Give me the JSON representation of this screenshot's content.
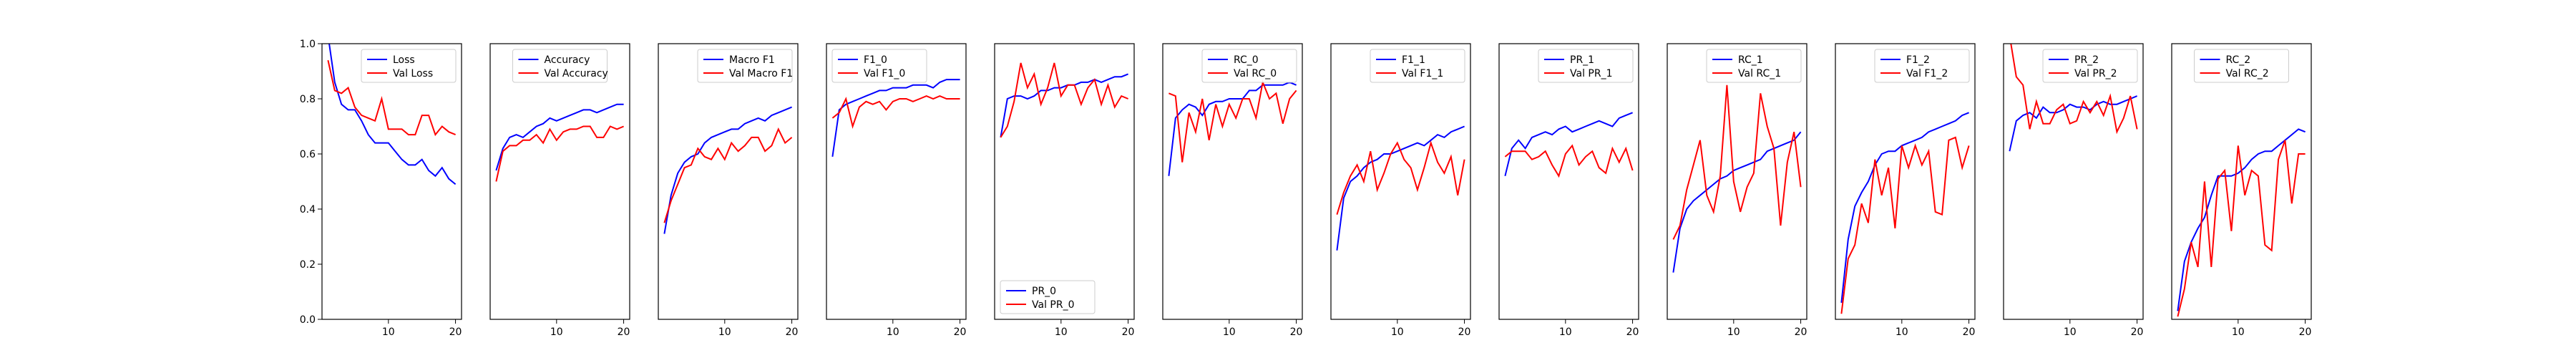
{
  "colors": {
    "train": "#0000ff",
    "val": "#ff0000",
    "axes": "#000000",
    "legend_border": "#cccccc"
  },
  "chart_data": [
    {
      "type": "line",
      "x": [
        1,
        2,
        3,
        4,
        5,
        6,
        7,
        8,
        9,
        10,
        11,
        12,
        13,
        14,
        15,
        16,
        17,
        18,
        19,
        20
      ],
      "xticks": [
        10,
        20
      ],
      "xlim": [
        0.1,
        20.9
      ],
      "yticks": [
        "0.0",
        "0.2",
        "0.4",
        "0.6",
        "0.8",
        "1.0"
      ],
      "ylim": [
        0,
        1
      ],
      "legend": "top-right",
      "series": [
        {
          "name": "Loss",
          "color": "blue",
          "values": [
            1.03,
            0.86,
            0.78,
            0.76,
            0.76,
            0.72,
            0.67,
            0.64,
            0.64,
            0.64,
            0.61,
            0.58,
            0.56,
            0.56,
            0.58,
            0.54,
            0.52,
            0.55,
            0.51,
            0.49
          ]
        },
        {
          "name": "Val Loss",
          "color": "red",
          "values": [
            0.94,
            0.83,
            0.82,
            0.84,
            0.77,
            0.74,
            0.73,
            0.72,
            0.8,
            0.69,
            0.69,
            0.69,
            0.67,
            0.67,
            0.74,
            0.74,
            0.67,
            0.7,
            0.68,
            0.67
          ]
        }
      ]
    },
    {
      "type": "line",
      "x": [
        1,
        2,
        3,
        4,
        5,
        6,
        7,
        8,
        9,
        10,
        11,
        12,
        13,
        14,
        15,
        16,
        17,
        18,
        19,
        20
      ],
      "xticks": [
        10,
        20
      ],
      "xlim": [
        0.1,
        20.9
      ],
      "yticks": [],
      "ylim": [
        0,
        1
      ],
      "legend": "top-center",
      "series": [
        {
          "name": "Accuracy",
          "color": "blue",
          "values": [
            0.54,
            0.62,
            0.66,
            0.67,
            0.66,
            0.68,
            0.7,
            0.71,
            0.73,
            0.72,
            0.73,
            0.74,
            0.75,
            0.76,
            0.76,
            0.75,
            0.76,
            0.77,
            0.78,
            0.78
          ]
        },
        {
          "name": "Val Accuracy",
          "color": "red",
          "values": [
            0.5,
            0.61,
            0.63,
            0.63,
            0.65,
            0.65,
            0.67,
            0.64,
            0.69,
            0.65,
            0.68,
            0.69,
            0.69,
            0.7,
            0.7,
            0.66,
            0.66,
            0.7,
            0.69,
            0.7
          ]
        }
      ]
    },
    {
      "type": "line",
      "x": [
        1,
        2,
        3,
        4,
        5,
        6,
        7,
        8,
        9,
        10,
        11,
        12,
        13,
        14,
        15,
        16,
        17,
        18,
        19,
        20
      ],
      "xticks": [
        10,
        20
      ],
      "xlim": [
        0.1,
        20.9
      ],
      "yticks": [],
      "ylim": [
        0,
        1
      ],
      "legend": "top-right",
      "series": [
        {
          "name": "Macro F1",
          "color": "blue",
          "values": [
            0.31,
            0.45,
            0.53,
            0.57,
            0.59,
            0.6,
            0.64,
            0.66,
            0.67,
            0.68,
            0.69,
            0.69,
            0.71,
            0.72,
            0.73,
            0.72,
            0.74,
            0.75,
            0.76,
            0.77
          ]
        },
        {
          "name": "Val Macro F1",
          "color": "red",
          "values": [
            0.35,
            0.43,
            0.49,
            0.55,
            0.56,
            0.62,
            0.59,
            0.58,
            0.62,
            0.58,
            0.64,
            0.61,
            0.63,
            0.66,
            0.66,
            0.61,
            0.63,
            0.69,
            0.64,
            0.66
          ]
        }
      ]
    },
    {
      "type": "line",
      "x": [
        1,
        2,
        3,
        4,
        5,
        6,
        7,
        8,
        9,
        10,
        11,
        12,
        13,
        14,
        15,
        16,
        17,
        18,
        19,
        20
      ],
      "xticks": [
        10,
        20
      ],
      "xlim": [
        0.1,
        20.9
      ],
      "yticks": [],
      "ylim": [
        0,
        1
      ],
      "legend": "top-left",
      "series": [
        {
          "name": "F1_0",
          "color": "blue",
          "values": [
            0.59,
            0.76,
            0.78,
            0.79,
            0.8,
            0.81,
            0.82,
            0.83,
            0.83,
            0.84,
            0.84,
            0.84,
            0.85,
            0.85,
            0.85,
            0.84,
            0.86,
            0.87,
            0.87,
            0.87
          ]
        },
        {
          "name": "Val F1_0",
          "color": "red",
          "values": [
            0.73,
            0.75,
            0.8,
            0.7,
            0.77,
            0.79,
            0.78,
            0.79,
            0.76,
            0.79,
            0.8,
            0.8,
            0.79,
            0.8,
            0.81,
            0.8,
            0.81,
            0.8,
            0.8,
            0.8
          ]
        }
      ]
    },
    {
      "type": "line",
      "x": [
        1,
        2,
        3,
        4,
        5,
        6,
        7,
        8,
        9,
        10,
        11,
        12,
        13,
        14,
        15,
        16,
        17,
        18,
        19,
        20
      ],
      "xticks": [
        10,
        20
      ],
      "xlim": [
        0.1,
        20.9
      ],
      "yticks": [],
      "ylim": [
        0,
        1
      ],
      "legend": "bottom-left",
      "series": [
        {
          "name": "PR_0",
          "color": "blue",
          "values": [
            0.66,
            0.8,
            0.81,
            0.81,
            0.8,
            0.81,
            0.83,
            0.83,
            0.84,
            0.84,
            0.85,
            0.85,
            0.86,
            0.86,
            0.87,
            0.86,
            0.87,
            0.88,
            0.88,
            0.89
          ]
        },
        {
          "name": "Val PR_0",
          "color": "red",
          "values": [
            0.66,
            0.7,
            0.79,
            0.93,
            0.84,
            0.89,
            0.78,
            0.84,
            0.93,
            0.81,
            0.85,
            0.85,
            0.78,
            0.84,
            0.87,
            0.78,
            0.85,
            0.77,
            0.81,
            0.8
          ]
        }
      ]
    },
    {
      "type": "line",
      "x": [
        1,
        2,
        3,
        4,
        5,
        6,
        7,
        8,
        9,
        10,
        11,
        12,
        13,
        14,
        15,
        16,
        17,
        18,
        19,
        20
      ],
      "xticks": [
        10,
        20
      ],
      "xlim": [
        0.1,
        20.9
      ],
      "yticks": [],
      "ylim": [
        0,
        1
      ],
      "legend": "top-right",
      "series": [
        {
          "name": "RC_0",
          "color": "blue",
          "values": [
            0.52,
            0.73,
            0.76,
            0.78,
            0.77,
            0.74,
            0.78,
            0.79,
            0.79,
            0.8,
            0.8,
            0.8,
            0.83,
            0.83,
            0.85,
            0.85,
            0.85,
            0.85,
            0.86,
            0.85
          ]
        },
        {
          "name": "Val RC_0",
          "color": "red",
          "values": [
            0.82,
            0.81,
            0.57,
            0.75,
            0.68,
            0.8,
            0.65,
            0.78,
            0.7,
            0.78,
            0.73,
            0.8,
            0.8,
            0.73,
            0.86,
            0.8,
            0.82,
            0.71,
            0.8,
            0.83
          ]
        }
      ]
    },
    {
      "type": "line",
      "x": [
        1,
        2,
        3,
        4,
        5,
        6,
        7,
        8,
        9,
        10,
        11,
        12,
        13,
        14,
        15,
        16,
        17,
        18,
        19,
        20
      ],
      "xticks": [
        10,
        20
      ],
      "xlim": [
        0.1,
        20.9
      ],
      "yticks": [],
      "ylim": [
        0,
        1
      ],
      "legend": "top-right",
      "series": [
        {
          "name": "F1_1",
          "color": "blue",
          "values": [
            0.25,
            0.44,
            0.5,
            0.52,
            0.55,
            0.57,
            0.58,
            0.6,
            0.6,
            0.61,
            0.62,
            0.63,
            0.64,
            0.63,
            0.65,
            0.67,
            0.66,
            0.68,
            0.69,
            0.7
          ]
        },
        {
          "name": "Val F1_1",
          "color": "red",
          "values": [
            0.38,
            0.46,
            0.52,
            0.56,
            0.5,
            0.61,
            0.47,
            0.53,
            0.6,
            0.64,
            0.58,
            0.55,
            0.47,
            0.55,
            0.64,
            0.57,
            0.53,
            0.59,
            0.45,
            0.58
          ]
        }
      ]
    },
    {
      "type": "line",
      "x": [
        1,
        2,
        3,
        4,
        5,
        6,
        7,
        8,
        9,
        10,
        11,
        12,
        13,
        14,
        15,
        16,
        17,
        18,
        19,
        20
      ],
      "xticks": [
        10,
        20
      ],
      "xlim": [
        0.1,
        20.9
      ],
      "yticks": [],
      "ylim": [
        0,
        1
      ],
      "legend": "top-right",
      "series": [
        {
          "name": "PR_1",
          "color": "blue",
          "values": [
            0.52,
            0.62,
            0.65,
            0.62,
            0.66,
            0.67,
            0.68,
            0.67,
            0.69,
            0.7,
            0.68,
            0.69,
            0.7,
            0.71,
            0.72,
            0.71,
            0.7,
            0.73,
            0.74,
            0.75
          ]
        },
        {
          "name": "Val PR_1",
          "color": "red",
          "values": [
            0.59,
            0.61,
            0.61,
            0.61,
            0.58,
            0.59,
            0.61,
            0.56,
            0.52,
            0.6,
            0.63,
            0.56,
            0.59,
            0.61,
            0.55,
            0.53,
            0.62,
            0.57,
            0.62,
            0.54
          ]
        }
      ]
    },
    {
      "type": "line",
      "x": [
        1,
        2,
        3,
        4,
        5,
        6,
        7,
        8,
        9,
        10,
        11,
        12,
        13,
        14,
        15,
        16,
        17,
        18,
        19,
        20
      ],
      "xticks": [
        10,
        20
      ],
      "xlim": [
        0.1,
        20.9
      ],
      "yticks": [],
      "ylim": [
        0,
        1
      ],
      "legend": "top-right",
      "series": [
        {
          "name": "RC_1",
          "color": "blue",
          "values": [
            0.17,
            0.33,
            0.4,
            0.43,
            0.45,
            0.47,
            0.49,
            0.51,
            0.52,
            0.54,
            0.55,
            0.56,
            0.57,
            0.58,
            0.61,
            0.62,
            0.63,
            0.64,
            0.65,
            0.68
          ]
        },
        {
          "name": "Val RC_1",
          "color": "red",
          "values": [
            0.29,
            0.34,
            0.47,
            0.56,
            0.65,
            0.45,
            0.39,
            0.52,
            0.85,
            0.5,
            0.39,
            0.48,
            0.53,
            0.82,
            0.7,
            0.62,
            0.34,
            0.57,
            0.68,
            0.48
          ]
        }
      ]
    },
    {
      "type": "line",
      "x": [
        1,
        2,
        3,
        4,
        5,
        6,
        7,
        8,
        9,
        10,
        11,
        12,
        13,
        14,
        15,
        16,
        17,
        18,
        19,
        20
      ],
      "xticks": [
        10,
        20
      ],
      "xlim": [
        0.1,
        20.9
      ],
      "yticks": [],
      "ylim": [
        0,
        1
      ],
      "legend": "top-right",
      "series": [
        {
          "name": "F1_2",
          "color": "blue",
          "values": [
            0.06,
            0.29,
            0.41,
            0.46,
            0.5,
            0.56,
            0.6,
            0.61,
            0.61,
            0.63,
            0.64,
            0.65,
            0.66,
            0.68,
            0.69,
            0.7,
            0.71,
            0.72,
            0.74,
            0.75
          ]
        },
        {
          "name": "Val F1_2",
          "color": "red",
          "values": [
            0.02,
            0.22,
            0.27,
            0.42,
            0.35,
            0.58,
            0.45,
            0.55,
            0.33,
            0.63,
            0.55,
            0.63,
            0.56,
            0.61,
            0.39,
            0.38,
            0.65,
            0.66,
            0.55,
            0.63
          ]
        }
      ]
    },
    {
      "type": "line",
      "x": [
        1,
        2,
        3,
        4,
        5,
        6,
        7,
        8,
        9,
        10,
        11,
        12,
        13,
        14,
        15,
        16,
        17,
        18,
        19,
        20
      ],
      "xticks": [
        10,
        20
      ],
      "xlim": [
        0.1,
        20.9
      ],
      "yticks": [],
      "ylim": [
        0,
        1
      ],
      "legend": "top-right",
      "series": [
        {
          "name": "PR_2",
          "color": "blue",
          "values": [
            0.61,
            0.72,
            0.74,
            0.75,
            0.73,
            0.77,
            0.75,
            0.75,
            0.76,
            0.78,
            0.77,
            0.77,
            0.76,
            0.78,
            0.79,
            0.78,
            0.78,
            0.79,
            0.8,
            0.81
          ]
        },
        {
          "name": "Val PR_2",
          "color": "red",
          "values": [
            1.03,
            0.88,
            0.85,
            0.69,
            0.79,
            0.71,
            0.71,
            0.76,
            0.78,
            0.71,
            0.72,
            0.79,
            0.75,
            0.79,
            0.74,
            0.81,
            0.68,
            0.73,
            0.81,
            0.69
          ]
        }
      ]
    },
    {
      "type": "line",
      "x": [
        1,
        2,
        3,
        4,
        5,
        6,
        7,
        8,
        9,
        10,
        11,
        12,
        13,
        14,
        15,
        16,
        17,
        18,
        19,
        20
      ],
      "xticks": [
        10,
        20
      ],
      "xlim": [
        0.1,
        20.9
      ],
      "yticks": [],
      "ylim": [
        0,
        1
      ],
      "legend": "top-center",
      "series": [
        {
          "name": "RC_2",
          "color": "blue",
          "values": [
            0.03,
            0.21,
            0.28,
            0.33,
            0.37,
            0.45,
            0.52,
            0.52,
            0.52,
            0.53,
            0.55,
            0.58,
            0.6,
            0.61,
            0.61,
            0.63,
            0.65,
            0.67,
            0.69,
            0.68
          ]
        },
        {
          "name": "Val RC_2",
          "color": "red",
          "values": [
            0.01,
            0.11,
            0.28,
            0.19,
            0.5,
            0.19,
            0.51,
            0.54,
            0.32,
            0.63,
            0.45,
            0.54,
            0.52,
            0.27,
            0.25,
            0.58,
            0.65,
            0.42,
            0.6,
            0.6
          ]
        }
      ]
    }
  ]
}
